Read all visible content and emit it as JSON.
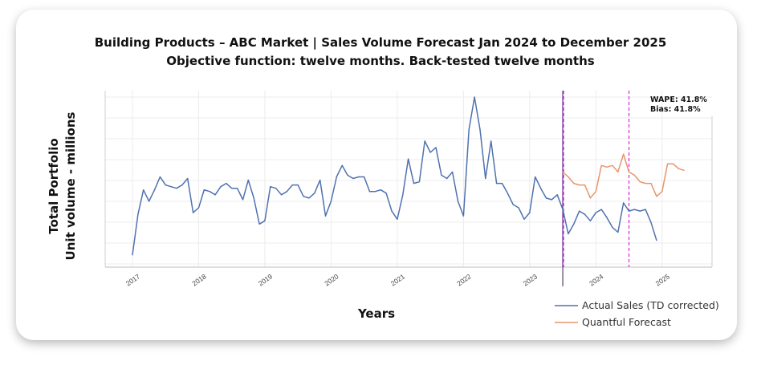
{
  "chart_data": {
    "type": "line",
    "title_line1": "Building Products – ABC Market    |    Sales Volume Forecast Jan 2024 to December 2025",
    "title_line2": "Objective function: twelve months. Back-tested twelve months",
    "xlabel": "Years",
    "ylabel_line1": "Total Portfolio",
    "ylabel_line2": "Unit volume - millions",
    "x_tick_labels": [
      "2017",
      "2018",
      "2019",
      "2020",
      "2021",
      "2022",
      "2023",
      "2024",
      "2025"
    ],
    "xlim": [
      2017.0,
      2025.75
    ],
    "ylim": [
      0,
      100
    ],
    "annotations": {
      "wape": "WAPE: 41.8%",
      "bias": "Bias: 41.8%"
    },
    "vlines": [
      {
        "x": 2023.5,
        "style": "solid",
        "color": "#6a1b9a"
      },
      {
        "x": 2023.5,
        "style": "dashed",
        "color": "#cc33cc"
      },
      {
        "x": 2024.5,
        "style": "dashed",
        "color": "#dd22dd"
      }
    ],
    "legend": [
      "Actual Sales (TD corrected)",
      "Quantful Forecast"
    ],
    "series": [
      {
        "name": "Actual Sales (TD corrected)",
        "color": "#4f72b0",
        "start": 2017.0,
        "step": 0.0833333,
        "values": [
          3,
          28,
          43,
          36,
          43,
          51,
          46,
          45,
          44,
          46,
          50,
          29,
          32,
          43,
          42,
          40,
          45,
          47,
          44,
          44,
          37,
          49,
          38,
          22,
          24,
          45,
          44,
          40,
          42,
          46,
          46,
          39,
          38,
          41,
          49,
          27,
          36,
          51,
          58,
          52,
          50,
          51,
          51,
          42,
          42,
          43,
          41,
          30,
          25,
          40,
          62,
          47,
          48,
          73,
          66,
          69,
          52,
          50,
          54,
          36,
          27,
          80,
          100,
          80,
          50,
          73,
          47,
          47,
          41,
          34,
          32,
          25,
          29,
          51,
          44,
          38,
          37,
          40,
          31,
          16,
          22,
          30,
          28,
          24,
          29,
          31,
          26,
          20,
          17,
          35,
          30,
          31,
          30,
          31,
          23,
          12
        ]
      },
      {
        "name": "Quantful Forecast",
        "color": "#e8956d",
        "start": 2023.5,
        "step": 0.0833333,
        "values": [
          54,
          51,
          47,
          46,
          46,
          38,
          42,
          58,
          57,
          58,
          54,
          65,
          54,
          52,
          48,
          47,
          47,
          39,
          42,
          59,
          59,
          56,
          55
        ]
      }
    ]
  }
}
